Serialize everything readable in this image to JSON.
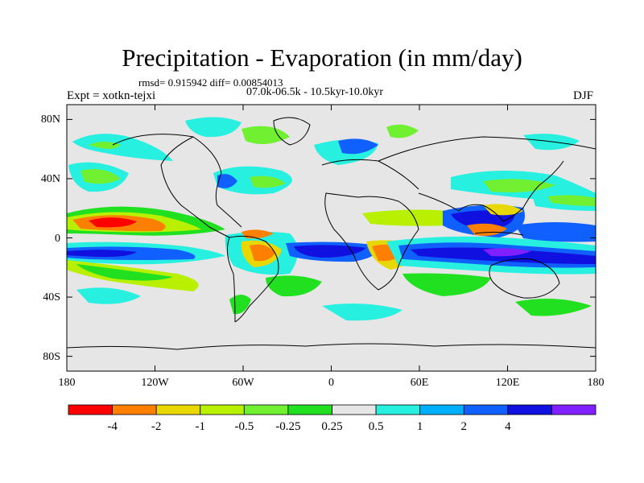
{
  "title": "Precipitation - Evaporation (in mm/day)",
  "stats": "rmsd= 0.915942 diff= 0.00854013",
  "experiment": "Expt = xotkn-tejxi",
  "period": "07.0k-06.5k - 10.5kyr-10.0kyr",
  "season": "DJF",
  "lat_ticks": [
    {
      "label": "80N",
      "value": 80
    },
    {
      "label": "40N",
      "value": 40
    },
    {
      "label": "0",
      "value": 0
    },
    {
      "label": "40S",
      "value": -40
    },
    {
      "label": "80S",
      "value": -80
    }
  ],
  "lon_ticks": [
    {
      "label": "180",
      "value": -180
    },
    {
      "label": "120W",
      "value": -120
    },
    {
      "label": "60W",
      "value": -60
    },
    {
      "label": "0",
      "value": 0
    },
    {
      "label": "60E",
      "value": 60
    },
    {
      "label": "120E",
      "value": 120
    },
    {
      "label": "180",
      "value": 180
    }
  ],
  "colorbar": {
    "colors": [
      "#ff0000",
      "#ff8000",
      "#e8d800",
      "#b8f000",
      "#70f030",
      "#20e020",
      "#e6e6e6",
      "#28f0e0",
      "#00b0ff",
      "#1060ff",
      "#1010e0",
      "#8020ff"
    ],
    "labels": [
      "-4",
      "-2",
      "-1",
      "-0.5",
      "-0.25",
      "0.25",
      "0.5",
      "1",
      "2",
      "4"
    ]
  },
  "map_extent": {
    "lon_min": -180,
    "lon_max": 180,
    "lat_min": -90,
    "lat_max": 90
  }
}
